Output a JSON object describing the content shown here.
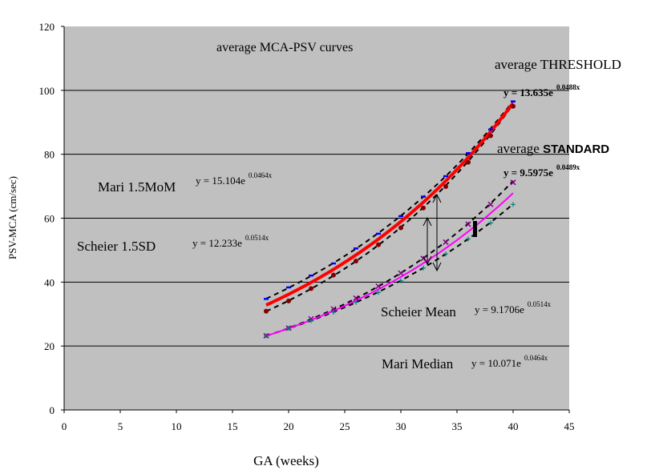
{
  "chart_data": {
    "type": "scatter",
    "title": "average MCA-PSV curves",
    "xlabel": "GA (weeks)",
    "ylabel": "PSV-MCA (cm/sec)",
    "xlim": [
      0,
      45
    ],
    "ylim": [
      0,
      120
    ],
    "xticks": [
      0,
      5,
      10,
      15,
      20,
      25,
      30,
      35,
      40,
      45
    ],
    "yticks": [
      0,
      20,
      40,
      60,
      80,
      100,
      120
    ],
    "grid": "horizontal",
    "background": "#c0c0c0",
    "x": [
      18,
      20,
      22,
      24,
      26,
      28,
      30,
      32,
      34,
      36,
      38,
      40
    ],
    "series": [
      {
        "name": "Mari 1.5MoM",
        "equation": "y = 15.104e",
        "exponent": "0.0464x",
        "a": 15.104,
        "b": 0.0464,
        "marker": "dash",
        "color": "#0000ff",
        "values": [
          34.8,
          38.4,
          42.1,
          45.9,
          50.6,
          55.2,
          60.7,
          66.8,
          73.2,
          80.4,
          87.8,
          96.6
        ]
      },
      {
        "name": "Scheier 1.5SD",
        "equation": "y = 12.233e",
        "exponent": "0.0514x",
        "a": 12.233,
        "b": 0.0514,
        "marker": "circle",
        "color": "#800000",
        "values": [
          30.9,
          34.1,
          38.0,
          42.2,
          46.6,
          51.7,
          57.0,
          63.2,
          69.9,
          77.5,
          85.8,
          95.0
        ]
      },
      {
        "name": "Scheier Mean",
        "equation": "y = 9.1706e",
        "exponent": "0.0514x",
        "a": 9.1706,
        "b": 0.0514,
        "marker": "x",
        "color": "#800080",
        "values": [
          23.2,
          25.6,
          28.5,
          31.6,
          35.0,
          38.7,
          42.8,
          47.4,
          52.5,
          58.1,
          64.3,
          71.2
        ]
      },
      {
        "name": "Mari Median",
        "equation": "y = 10.071e",
        "exponent": "0.0464x",
        "a": 10.071,
        "b": 0.0464,
        "marker": "plus",
        "color": "#008080",
        "values": [
          23.2,
          25.6,
          27.9,
          30.6,
          33.7,
          36.8,
          40.4,
          44.4,
          48.8,
          53.5,
          58.5,
          64.3
        ]
      }
    ],
    "averages": [
      {
        "label_prefix": "average ",
        "label": "THRESHOLD",
        "equation": "y = 13.635e",
        "exponent": "0.0488x",
        "a": 13.635,
        "b": 0.0488,
        "color": "#ff0000",
        "range": [
          18,
          40
        ]
      },
      {
        "label_prefix": "average ",
        "label": "STANDARD",
        "equation": "y = 9.5975e",
        "exponent": "0.0489x",
        "a": 9.5975,
        "b": 0.0489,
        "color": "#ff00ff",
        "range": [
          18,
          40
        ]
      }
    ]
  }
}
